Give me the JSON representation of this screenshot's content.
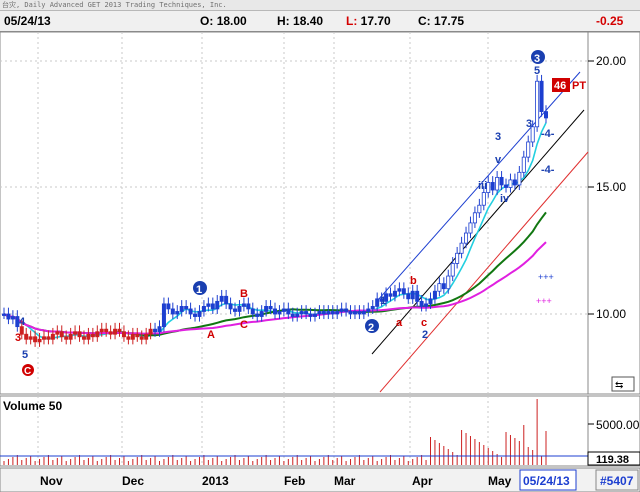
{
  "window": {
    "title": "台灾, Daily   Advanced GET 2013 Trading Techniques, Inc."
  },
  "quote": {
    "date": "05/24/13",
    "open_label": "O:",
    "open": "18.00",
    "high_label": "H:",
    "high": "18.40",
    "low_label": "L:",
    "low": "17.70",
    "close_label": "C:",
    "close": "17.75",
    "change": "-0.25"
  },
  "price_axis": {
    "ticks": [
      "20.00",
      "15.00",
      "10.00"
    ]
  },
  "volume_panel": {
    "title": "Volume 50",
    "ticks": [
      "5000.00"
    ],
    "last_value": "119.38"
  },
  "time_axis": {
    "labels": [
      "Nov",
      "Dec",
      "2013",
      "Feb",
      "Mar",
      "Apr",
      "May"
    ],
    "current_date": "05/24/13",
    "record_id": "#5407"
  },
  "markers": {
    "wave_circled": [
      "1",
      "2",
      "3"
    ],
    "wave_c_circled": "C",
    "labels": [
      "4",
      "3",
      "5",
      "A",
      "B",
      "C",
      "1",
      "b",
      "a",
      "c",
      "2",
      "3",
      "v",
      "iv",
      "iii",
      "3",
      "5",
      "-4-",
      "-4-"
    ],
    "pt_label": "PT",
    "pt_badge": "46"
  },
  "chart_data": {
    "type": "ohlc",
    "y_range": [
      7.5,
      21.5
    ],
    "y_ticks": [
      10,
      15,
      20
    ],
    "x_labels": [
      "Nov",
      "Dec",
      "2013",
      "Feb",
      "Mar",
      "Apr",
      "May"
    ],
    "last_bar": {
      "date": "05/24/13",
      "open": 18.0,
      "high": 18.4,
      "low": 17.7,
      "close": 17.75,
      "change": -0.25
    },
    "approx_closes": [
      10.0,
      9.8,
      9.9,
      9.5,
      9.2,
      9.0,
      9.1,
      8.9,
      9.0,
      9.1,
      9.0,
      9.2,
      9.3,
      9.1,
      9.0,
      9.2,
      9.3,
      9.1,
      9.0,
      9.2,
      9.1,
      9.3,
      9.4,
      9.3,
      9.2,
      9.4,
      9.3,
      9.1,
      9.0,
      9.2,
      9.1,
      9.0,
      9.2,
      9.4,
      9.3,
      9.5,
      10.4,
      10.2,
      10.0,
      10.1,
      10.3,
      10.2,
      10.0,
      9.9,
      10.1,
      10.3,
      10.4,
      10.2,
      10.5,
      10.7,
      10.4,
      10.2,
      10.1,
      10.3,
      10.4,
      10.2,
      10.0,
      9.9,
      10.1,
      10.3,
      10.2,
      10.0,
      10.1,
      10.2,
      10.0,
      9.9,
      10.0,
      10.1,
      10.0,
      9.9,
      10.0,
      10.1,
      10.0,
      10.1,
      10.0,
      10.1,
      10.2,
      10.1,
      10.0,
      10.1,
      10.0,
      10.1,
      10.2,
      10.3,
      10.6,
      10.5,
      10.8,
      10.7,
      10.9,
      11.0,
      10.8,
      10.6,
      10.9,
      10.5,
      10.3,
      10.4,
      10.6,
      10.9,
      11.2,
      11.0,
      11.5,
      12.0,
      12.4,
      12.8,
      13.2,
      13.6,
      14.0,
      14.3,
      14.8,
      15.2,
      14.9,
      15.4,
      15.1,
      15.0,
      15.3,
      15.1,
      15.6,
      16.2,
      16.8,
      17.4,
      19.2,
      18.0,
      17.75
    ],
    "moving_averages": [
      {
        "name": "cyan",
        "color": "#22cfe0"
      },
      {
        "name": "green",
        "color": "#117711"
      },
      {
        "name": "magenta",
        "color": "#e020e0"
      }
    ],
    "channels": [
      {
        "color": "#1d3fd0"
      },
      {
        "color": "#000000"
      },
      {
        "color": "#e03030"
      }
    ]
  },
  "colors": {
    "bar_default": "#1d3fd0",
    "bar_down": "#cc2020",
    "wave_blue": "#1a3fb0",
    "label_red": "#d00000",
    "volume": "#cc2020"
  }
}
